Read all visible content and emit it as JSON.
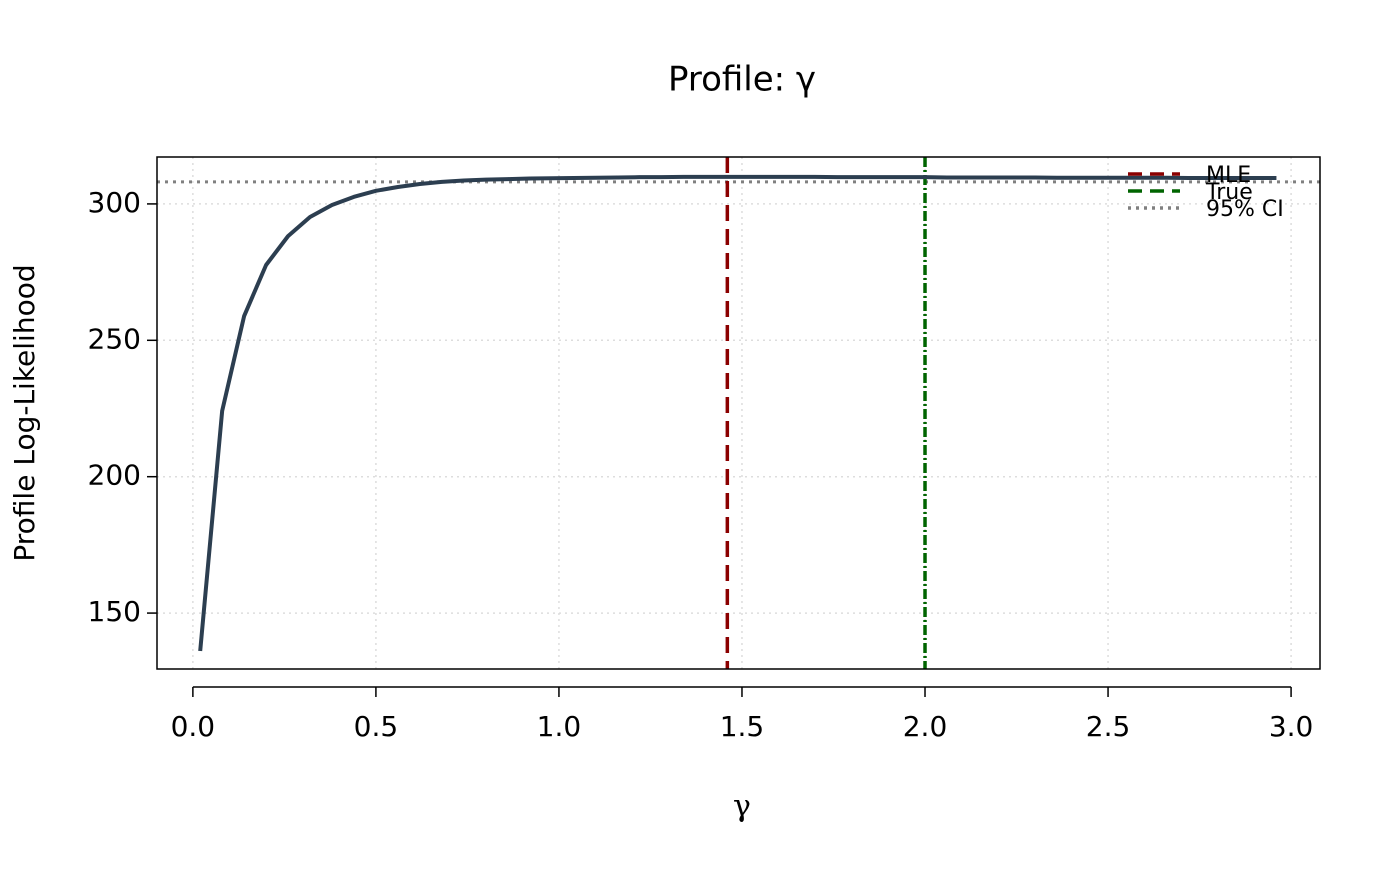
{
  "chart_data": {
    "type": "line",
    "title": "Profile: γ",
    "x_label": "γ",
    "y_label": "Profile Log-Likelihood",
    "x": [
      0.02,
      0.08,
      0.14,
      0.2,
      0.26,
      0.32,
      0.38,
      0.44,
      0.5,
      0.56,
      0.62,
      0.68,
      0.74,
      0.8,
      0.86,
      0.92,
      0.98,
      1.04,
      1.1,
      1.16,
      1.22,
      1.28,
      1.34,
      1.4,
      1.46,
      1.52,
      1.58,
      1.64,
      1.7,
      1.76,
      1.82,
      1.88,
      1.94,
      2.0,
      2.06,
      2.12,
      2.18,
      2.24,
      2.3,
      2.36,
      2.42,
      2.48,
      2.54,
      2.6,
      2.66,
      2.72,
      2.78,
      2.84,
      2.9,
      2.96
    ],
    "series": [
      {
        "color": "#2c3e50",
        "values": [
          136.1,
          224.1,
          258.9,
          277.6,
          288.2,
          295.2,
          299.6,
          302.6,
          304.8,
          306.2,
          307.3,
          308.1,
          308.6,
          308.9,
          309.1,
          309.3,
          309.4,
          309.5,
          309.6,
          309.7,
          309.8,
          309.8,
          309.9,
          309.9,
          309.9,
          309.9,
          309.9,
          309.9,
          309.9,
          309.8,
          309.8,
          309.8,
          309.8,
          309.8,
          309.7,
          309.7,
          309.7,
          309.7,
          309.7,
          309.6,
          309.6,
          309.6,
          309.6,
          309.6,
          309.6,
          309.5,
          309.5,
          309.5,
          309.5,
          309.5
        ]
      }
    ],
    "vlines": [
      {
        "name": "MLE",
        "value": 1.46,
        "color": "#8b0000"
      },
      {
        "name": "True",
        "value": 2.0,
        "color": "#006400"
      }
    ],
    "hlines": [
      {
        "name": "95% CI",
        "value": 308.1,
        "color": "#808080"
      }
    ],
    "xlim": [
      -0.098,
      3.079
    ],
    "ylim": [
      129.5,
      317.2
    ],
    "xticks": [
      {
        "value": 0,
        "label": "0.0"
      },
      {
        "value": 0.5,
        "label": "0.5"
      },
      {
        "value": 1,
        "label": "1.0"
      },
      {
        "value": 1.5,
        "label": "1.5"
      },
      {
        "value": 2,
        "label": "2.0"
      },
      {
        "value": 2.5,
        "label": "2.5"
      },
      {
        "value": 3,
        "label": "3.0"
      }
    ],
    "yticks": [
      150,
      200,
      250,
      300
    ],
    "grid": true,
    "legend": "topright"
  }
}
